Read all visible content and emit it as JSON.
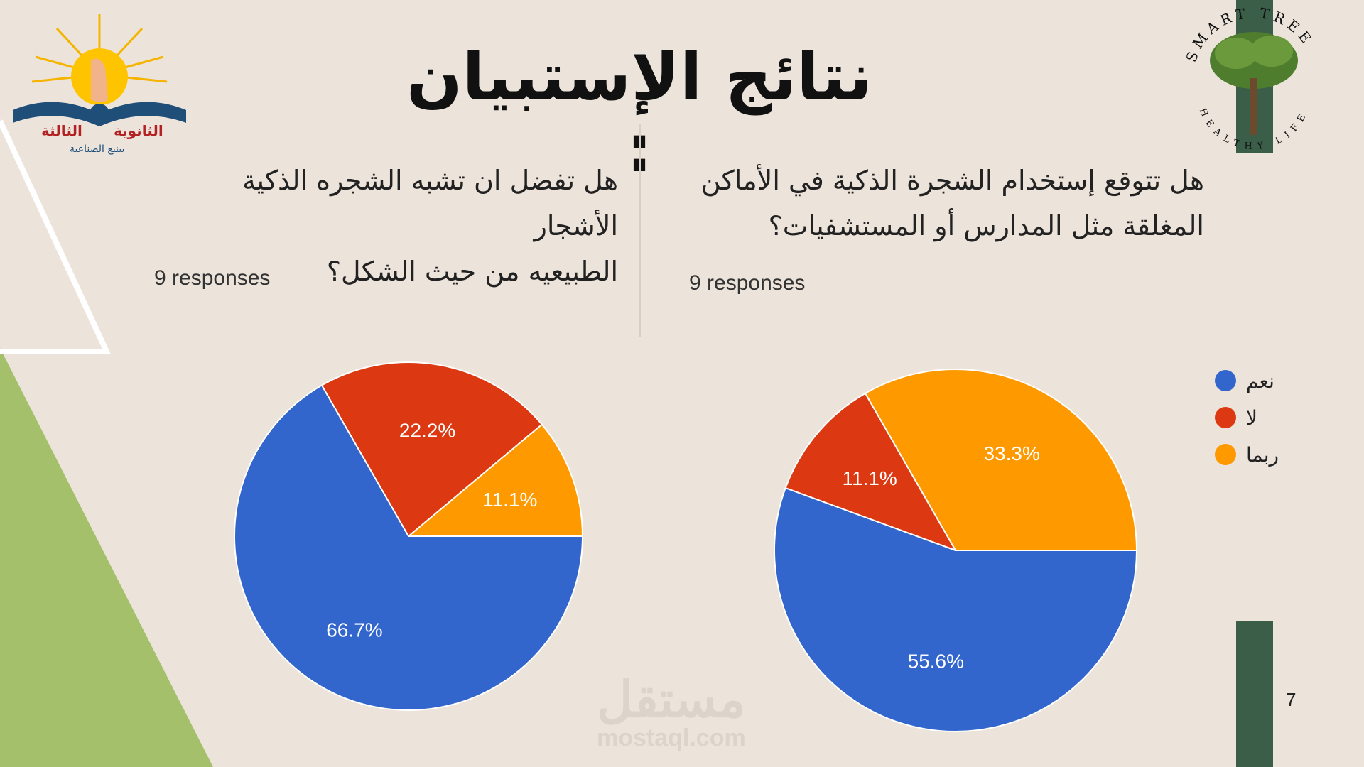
{
  "slide": {
    "title": "نتائج الإستبيان :",
    "page_number": "7"
  },
  "logo_left": {
    "line1": "الثانوية",
    "line2": "الثالثة",
    "line3": "بينبع الصناعية"
  },
  "logo_right": {
    "text_top": "SMART TREE",
    "text_bottom": "HEALTHY LIFE"
  },
  "watermark": {
    "arabic": "مستقل",
    "latin": "mostaql.com"
  },
  "colors": {
    "blue": "#3366cc",
    "red": "#dc3912",
    "orange": "#ff9900",
    "green_triangle": "#a4c06a",
    "dark_green": "#3a5e48"
  },
  "legend": {
    "items": [
      {
        "label": "نعم",
        "color": "#3366cc"
      },
      {
        "label": "لا",
        "color": "#dc3912"
      },
      {
        "label": "ربما",
        "color": "#ff9900"
      }
    ]
  },
  "questions": {
    "left": {
      "line1": "هل تفضل ان تشبه الشجره الذكية الأشجار",
      "line2": "الطبيعيه من حيث الشكل؟",
      "responses": "9 responses"
    },
    "right": {
      "line1": "هل تتوقع إستخدام الشجرة الذكية في الأماكن",
      "line2": "المغلقة مثل المدارس أو المستشفيات؟",
      "responses": "9 responses"
    }
  },
  "chart_data": [
    {
      "type": "pie",
      "title": "هل تفضل ان تشبه الشجره الذكية الأشجار الطبيعيه من حيث الشكل؟",
      "categories": [
        "نعم",
        "لا",
        "ربما"
      ],
      "values": [
        66.7,
        22.2,
        11.1
      ],
      "labels": [
        "66.7%",
        "22.2%",
        "11.1%"
      ],
      "colors": [
        "#3366cc",
        "#dc3912",
        "#ff9900"
      ],
      "legend": "right"
    },
    {
      "type": "pie",
      "title": "هل تتوقع إستخدام الشجرة الذكية في الأماكن المغلقة مثل المدارس أو المستشفيات؟",
      "categories": [
        "نعم",
        "لا",
        "ربما"
      ],
      "values": [
        55.6,
        11.1,
        33.3
      ],
      "labels": [
        "55.6%",
        "11.1%",
        "33.3%"
      ],
      "colors": [
        "#3366cc",
        "#dc3912",
        "#ff9900"
      ],
      "legend": "right"
    }
  ]
}
